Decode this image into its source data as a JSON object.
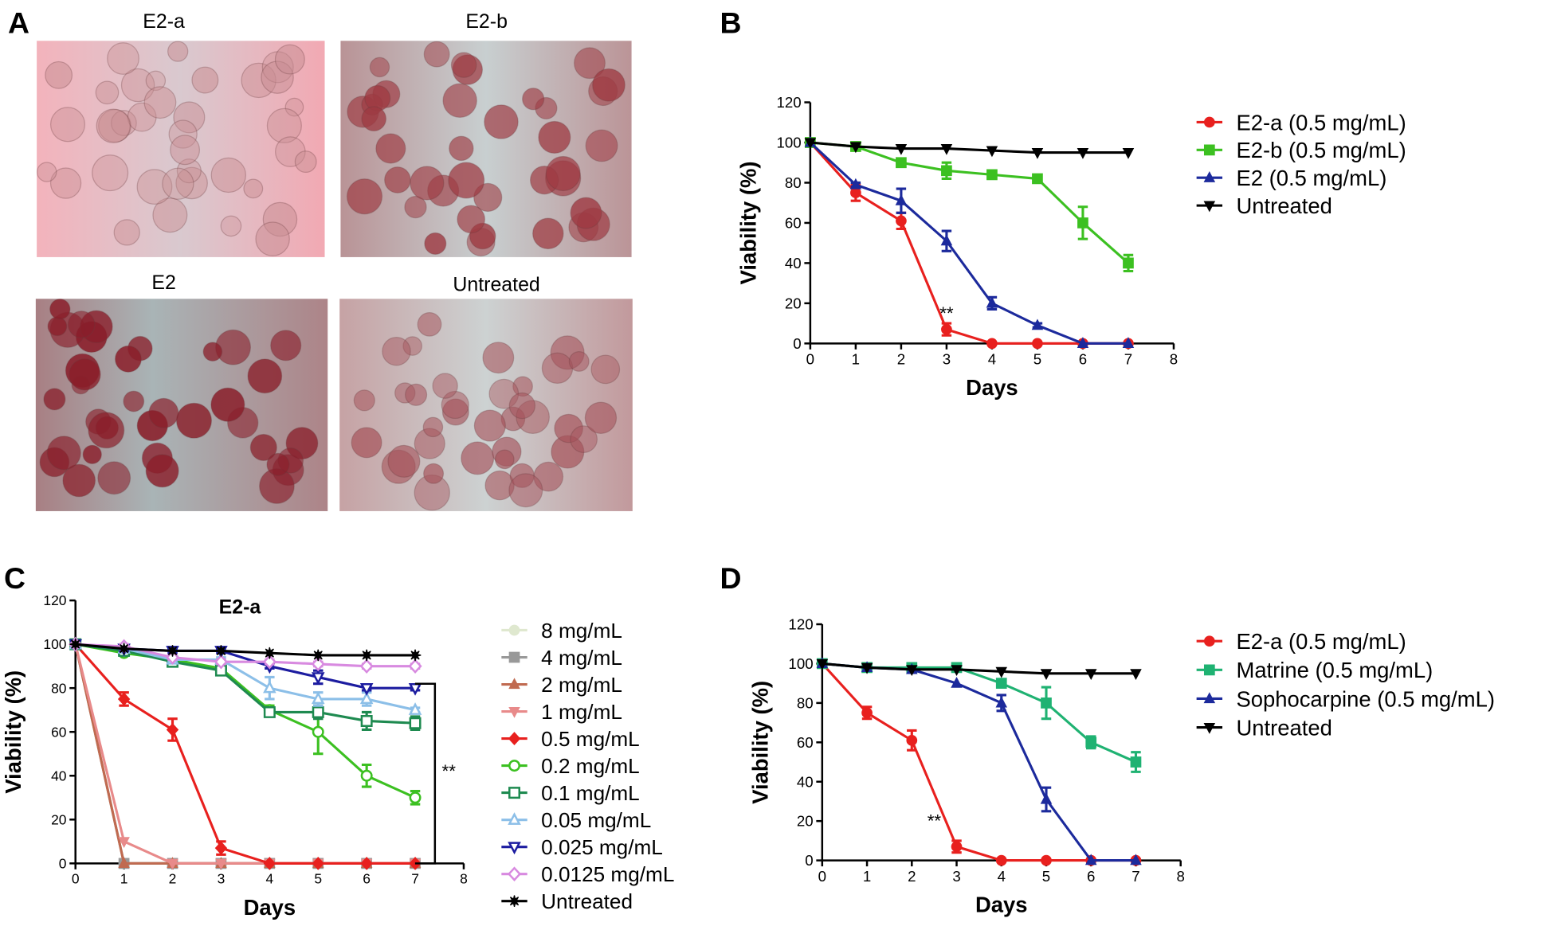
{
  "panel_a": {
    "letter": "A",
    "images": [
      "E2-a",
      "E2-b",
      "E2",
      "Untreated"
    ]
  },
  "chart_data": [
    {
      "type": "line",
      "panel": "B",
      "xlabel": "Days",
      "ylabel": "Viability (%)",
      "x": [
        0,
        1,
        2,
        3,
        4,
        5,
        6,
        7
      ],
      "xlim": [
        0,
        8
      ],
      "xticks": [
        0,
        1,
        2,
        3,
        4,
        5,
        6,
        7,
        8
      ],
      "ylim": [
        0,
        120
      ],
      "yticks": [
        0,
        20,
        40,
        60,
        80,
        100,
        120
      ],
      "legend": "right",
      "annotation": "**",
      "series": [
        {
          "name": "E2-a (0.5 mg/mL)",
          "color": "#e8201e",
          "marker": "circle",
          "filled": true,
          "values": [
            100,
            75,
            61,
            7,
            0,
            0,
            0,
            0
          ],
          "errors": [
            0,
            4,
            4,
            3,
            0,
            0,
            0,
            0
          ]
        },
        {
          "name": "E2-b (0.5 mg/mL)",
          "color": "#3cc021",
          "marker": "square",
          "filled": true,
          "values": [
            100,
            98,
            90,
            86,
            84,
            82,
            60,
            40
          ],
          "errors": [
            0,
            1,
            1,
            4,
            1,
            1,
            8,
            4
          ]
        },
        {
          "name": "E2 (0.5 mg/mL)",
          "color": "#1c2a9c",
          "marker": "triangle",
          "filled": true,
          "values": [
            100,
            79,
            71,
            51,
            20,
            9,
            0,
            0
          ],
          "errors": [
            0,
            1,
            6,
            5,
            3,
            1,
            0,
            0
          ]
        },
        {
          "name": "Untreated",
          "color": "#000000",
          "marker": "triangle-down",
          "filled": true,
          "values": [
            100,
            98,
            97,
            97,
            96,
            95,
            95,
            95
          ],
          "errors": [
            0,
            0,
            0,
            0,
            0,
            0,
            0,
            0
          ]
        }
      ]
    },
    {
      "type": "line",
      "panel": "C",
      "title": "E2-a",
      "xlabel": "Days",
      "ylabel": "Viability (%)",
      "x": [
        0,
        1,
        2,
        3,
        4,
        5,
        6,
        7
      ],
      "xlim": [
        0,
        8
      ],
      "xticks": [
        0,
        1,
        2,
        3,
        4,
        5,
        6,
        7,
        8
      ],
      "ylim": [
        0,
        120
      ],
      "yticks": [
        0,
        20,
        40,
        60,
        80,
        100,
        120
      ],
      "legend": "right",
      "annotation": "**",
      "series": [
        {
          "name": "8 mg/mL",
          "color": "#dfe8cf",
          "marker": "circle",
          "filled": true,
          "values": [
            100,
            0,
            0,
            0,
            0,
            0,
            0,
            0
          ],
          "errors": [
            0,
            0,
            0,
            0,
            0,
            0,
            0,
            0
          ]
        },
        {
          "name": "4 mg/mL",
          "color": "#999999",
          "marker": "square",
          "filled": true,
          "values": [
            100,
            0,
            0,
            0,
            0,
            0,
            0,
            0
          ],
          "errors": [
            0,
            0,
            0,
            0,
            0,
            0,
            0,
            0
          ]
        },
        {
          "name": "2 mg/mL",
          "color": "#c06a50",
          "marker": "triangle",
          "filled": true,
          "values": [
            100,
            0,
            0,
            0,
            0,
            0,
            0,
            0
          ],
          "errors": [
            0,
            0,
            0,
            0,
            0,
            0,
            0,
            0
          ]
        },
        {
          "name": "1 mg/mL",
          "color": "#e88a8a",
          "marker": "triangle-down",
          "filled": true,
          "values": [
            100,
            10,
            0,
            0,
            0,
            0,
            0,
            0
          ],
          "errors": [
            0,
            0,
            0,
            0,
            0,
            0,
            0,
            0
          ]
        },
        {
          "name": "0.5 mg/mL",
          "color": "#e8201e",
          "marker": "diamond",
          "filled": true,
          "values": [
            100,
            75,
            61,
            7,
            0,
            0,
            0,
            0
          ],
          "errors": [
            0,
            3,
            5,
            3,
            0,
            0,
            0,
            0
          ]
        },
        {
          "name": "0.2 mg/mL",
          "color": "#3cc021",
          "marker": "circle",
          "filled": false,
          "values": [
            100,
            96,
            93,
            89,
            70,
            60,
            40,
            30
          ],
          "errors": [
            0,
            1,
            1,
            1,
            2,
            10,
            5,
            3
          ]
        },
        {
          "name": "0.1 mg/mL",
          "color": "#1e8a50",
          "marker": "square",
          "filled": false,
          "values": [
            100,
            97,
            92,
            88,
            69,
            69,
            65,
            64
          ],
          "errors": [
            0,
            1,
            1,
            1,
            2,
            3,
            4,
            3
          ]
        },
        {
          "name": "0.05 mg/mL",
          "color": "#8cbfe8",
          "marker": "triangle",
          "filled": false,
          "values": [
            100,
            98,
            93,
            93,
            80,
            75,
            75,
            70
          ],
          "errors": [
            0,
            1,
            1,
            1,
            5,
            3,
            3,
            1
          ]
        },
        {
          "name": "0.025 mg/mL",
          "color": "#1c1ca0",
          "marker": "triangle-down",
          "filled": false,
          "values": [
            100,
            98,
            97,
            97,
            90,
            85,
            80,
            80
          ],
          "errors": [
            0,
            1,
            1,
            1,
            1,
            3,
            1,
            1
          ]
        },
        {
          "name": "0.0125 mg/mL",
          "color": "#d88ae0",
          "marker": "diamond",
          "filled": false,
          "values": [
            100,
            99,
            94,
            92,
            92,
            91,
            90,
            90
          ],
          "errors": [
            0,
            1,
            1,
            1,
            1,
            1,
            1,
            1
          ]
        },
        {
          "name": "Untreated",
          "color": "#000000",
          "marker": "star",
          "filled": true,
          "values": [
            100,
            98,
            97,
            97,
            96,
            95,
            95,
            95
          ],
          "errors": [
            0,
            0,
            0,
            0,
            0,
            0,
            0,
            0
          ]
        }
      ]
    },
    {
      "type": "line",
      "panel": "D",
      "xlabel": "Days",
      "ylabel": "Viability (%)",
      "x": [
        0,
        1,
        2,
        3,
        4,
        5,
        6,
        7
      ],
      "xlim": [
        0,
        8
      ],
      "xticks": [
        0,
        1,
        2,
        3,
        4,
        5,
        6,
        7,
        8
      ],
      "ylim": [
        0,
        120
      ],
      "yticks": [
        0,
        20,
        40,
        60,
        80,
        100,
        120
      ],
      "legend": "right",
      "annotation": "**",
      "series": [
        {
          "name": "E2-a (0.5 mg/mL)",
          "color": "#e8201e",
          "marker": "circle",
          "filled": true,
          "values": [
            100,
            75,
            61,
            7,
            0,
            0,
            0,
            0
          ],
          "errors": [
            0,
            3,
            5,
            3,
            0,
            0,
            0,
            0
          ]
        },
        {
          "name": "Matrine (0.5 mg/mL)",
          "color": "#1fb272",
          "marker": "square",
          "filled": true,
          "values": [
            100,
            98,
            98,
            98,
            90,
            80,
            60,
            50
          ],
          "errors": [
            0,
            1,
            1,
            1,
            1,
            8,
            3,
            5
          ]
        },
        {
          "name": "Sophocarpine (0.5 mg/mL)",
          "color": "#1c2a9c",
          "marker": "triangle",
          "filled": true,
          "values": [
            100,
            98,
            97,
            90,
            80,
            31,
            0,
            0
          ],
          "errors": [
            0,
            0,
            0,
            0,
            4,
            6,
            0,
            0
          ]
        },
        {
          "name": "Untreated",
          "color": "#000000",
          "marker": "triangle-down",
          "filled": true,
          "values": [
            100,
            98,
            97,
            97,
            96,
            95,
            95,
            95
          ],
          "errors": [
            0,
            0,
            0,
            0,
            0,
            0,
            0,
            0
          ]
        }
      ]
    }
  ]
}
